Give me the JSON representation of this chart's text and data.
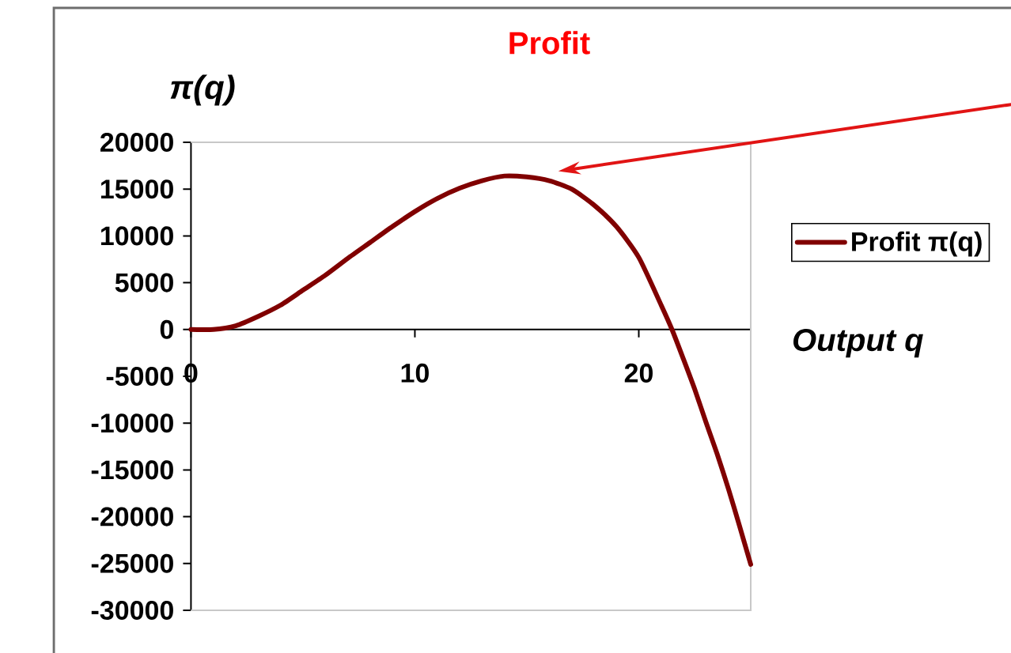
{
  "chart_data": {
    "type": "line",
    "title": "Profit",
    "ylabel": "π(q)",
    "xlabel": "Output q",
    "legend": "right",
    "x": [
      0,
      1,
      2,
      3,
      4,
      5,
      6,
      7,
      8,
      9,
      10,
      11,
      12,
      13,
      14,
      15,
      16,
      17,
      18,
      19,
      20,
      21,
      21.5,
      22,
      22.5,
      23,
      23.5,
      24,
      24.5,
      25
    ],
    "series": [
      {
        "name": "Profit π(q)",
        "color": "#800000",
        "values": [
          0,
          0,
          400,
          1400,
          2600,
          4200,
          5800,
          7600,
          9300,
          11000,
          12600,
          14000,
          15100,
          15900,
          16400,
          16300,
          15900,
          15000,
          13300,
          11000,
          7700,
          2600,
          -100,
          -3200,
          -6400,
          -9900,
          -13300,
          -17000,
          -21000,
          -25100
        ]
      }
    ],
    "xlim": [
      0,
      25
    ],
    "ylim": [
      -30000,
      20000
    ],
    "xticks": [
      0,
      10,
      20
    ],
    "yticks": [
      -30000,
      -25000,
      -20000,
      -15000,
      -10000,
      -5000,
      0,
      5000,
      10000,
      15000,
      20000
    ]
  }
}
